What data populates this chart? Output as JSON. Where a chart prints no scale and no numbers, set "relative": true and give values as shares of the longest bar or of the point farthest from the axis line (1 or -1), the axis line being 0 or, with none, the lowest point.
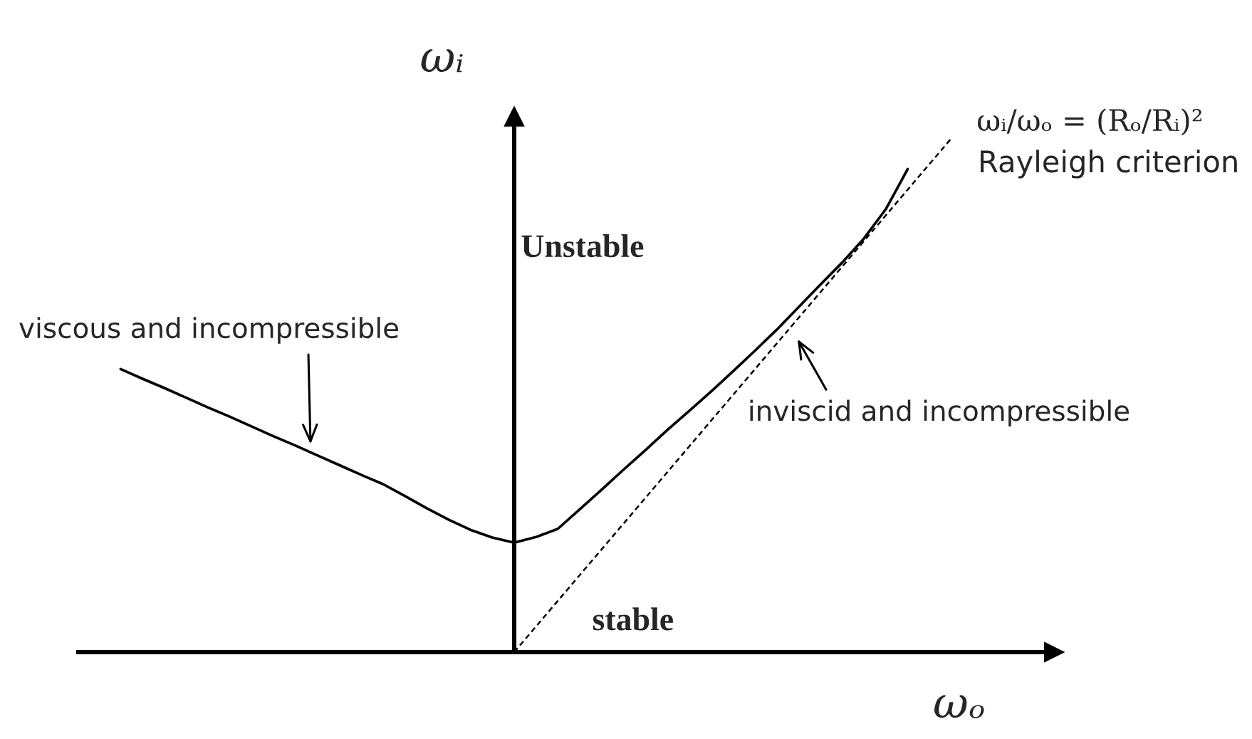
{
  "chart_data": {
    "type": "line",
    "relative": true,
    "xlabel": "ωₒ",
    "ylabel": "ωᵢ",
    "categories": [
      null,
      null,
      null,
      null,
      null,
      null,
      null,
      null,
      null,
      null,
      null,
      null,
      null,
      null,
      null,
      null,
      null,
      null,
      null,
      null,
      null,
      null,
      null,
      null,
      null,
      null,
      null,
      null,
      null,
      null,
      null,
      null,
      null,
      null,
      null,
      null,
      null,
      null,
      null
    ],
    "series": [
      {
        "color": "#000000",
        "line_style": "solid",
        "values": [
          0.551,
          0.532,
          0.514,
          0.495,
          0.476,
          0.458,
          0.439,
          0.42,
          0.402,
          0.383,
          0.364,
          0.345,
          0.327,
          0.304,
          0.28,
          0.258,
          0.238,
          0.223,
          0.213,
          0.224,
          0.24,
          0.278,
          0.316,
          0.355,
          0.393,
          0.432,
          0.469,
          0.507,
          0.546,
          0.586,
          0.627,
          0.671,
          0.715,
          0.758,
          0.805,
          0.862,
          0.94,
          null,
          null
        ]
      },
      {
        "color": "#000000",
        "line_style": "dashed",
        "values": [
          null,
          null,
          null,
          null,
          null,
          null,
          null,
          null,
          null,
          null,
          null,
          null,
          null,
          null,
          null,
          null,
          null,
          null,
          0,
          0.05,
          0.1,
          0.15,
          0.2,
          0.25,
          0.3,
          0.35,
          0.4,
          0.45,
          0.5,
          0.55,
          0.6,
          0.65,
          0.7,
          0.75,
          0.8,
          0.85,
          0.9,
          0.95,
          1.0
        ]
      }
    ],
    "annotations": [
      "viscous and incompressible",
      "inviscid and incompressible",
      "Unstable",
      "stable",
      "ωᵢ/ωₒ = (Rₒ/Rᵢ)²",
      "Rayleigh criterion"
    ]
  }
}
